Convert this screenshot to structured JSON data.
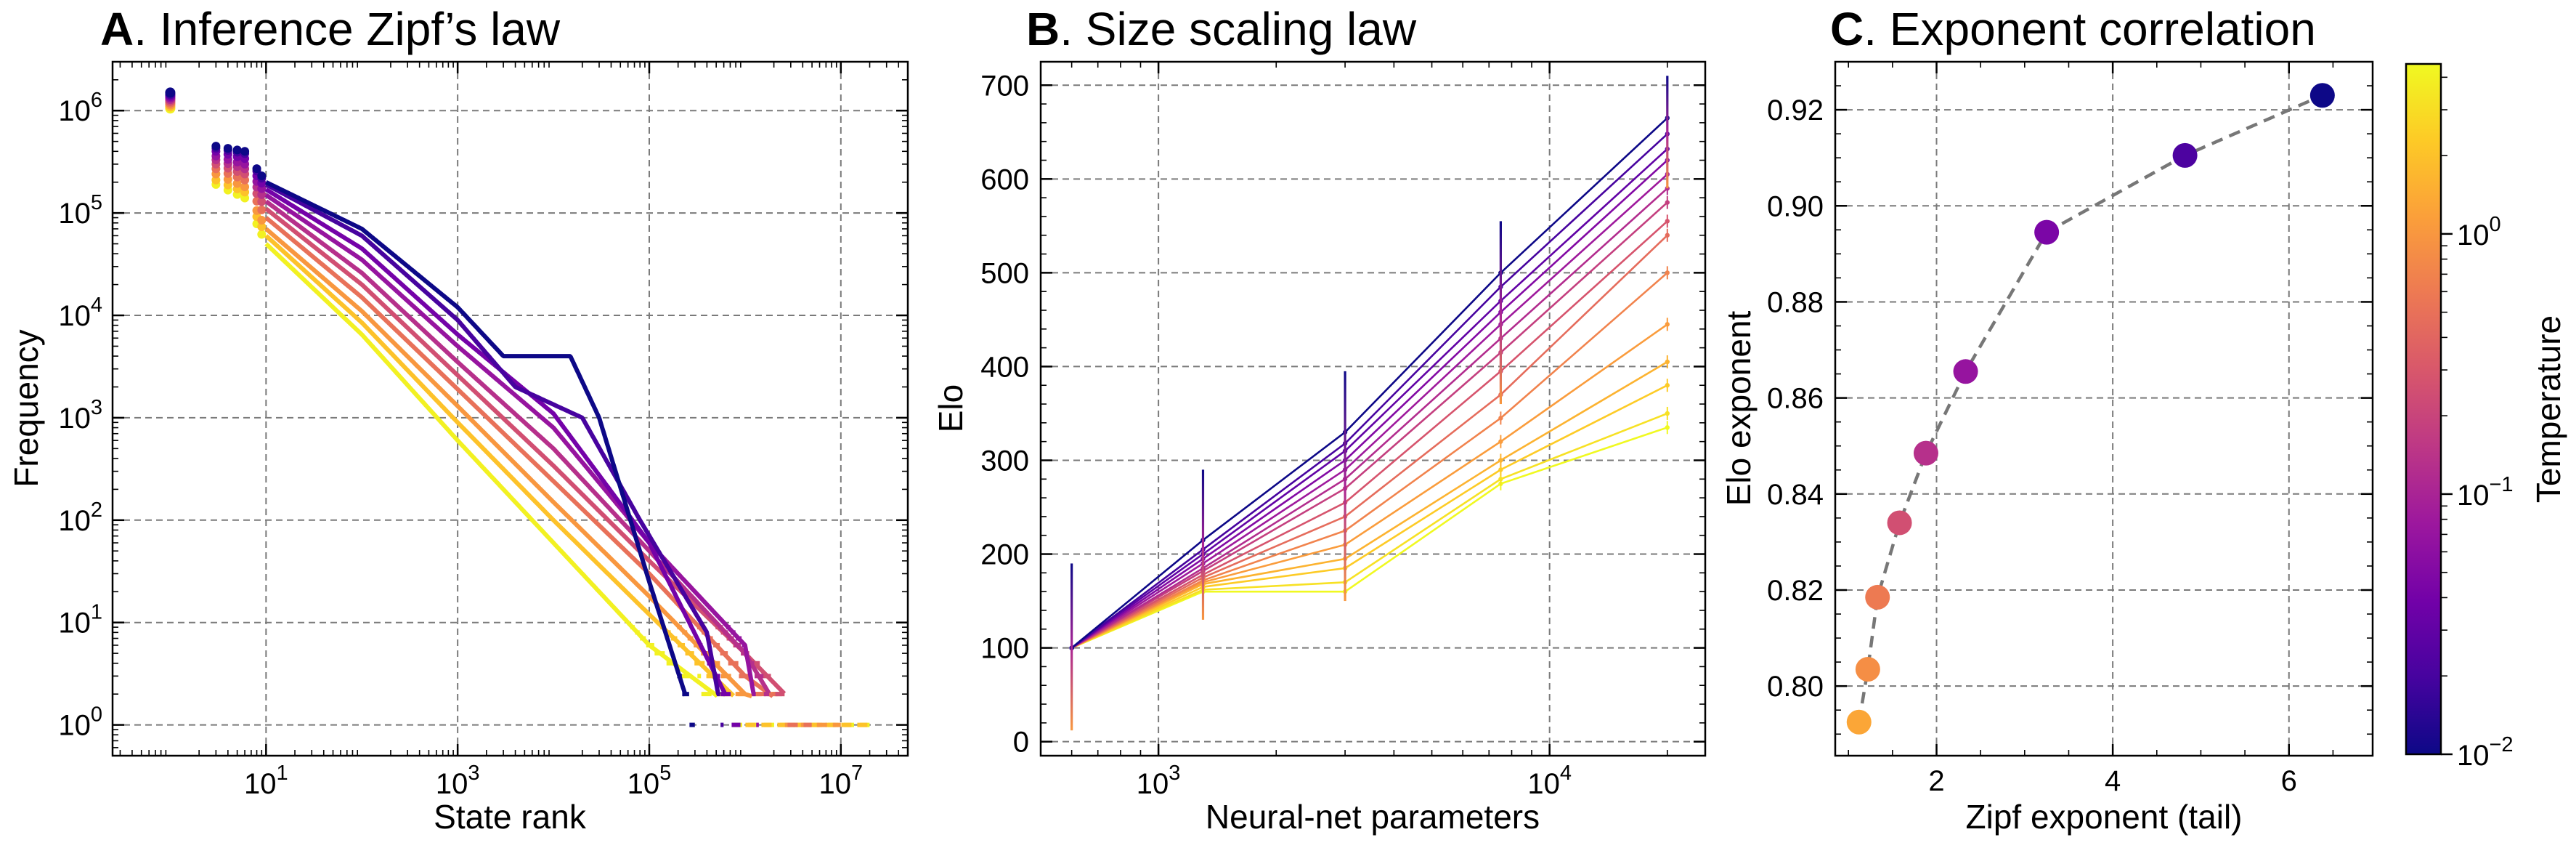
{
  "panels": {
    "A": {
      "letter": "A",
      "title_rest": ". Inference Zipf’s law",
      "xlabel": "State rank",
      "ylabel": "Frequency"
    },
    "B": {
      "letter": "B",
      "title_rest": ". Size scaling law",
      "xlabel": "Neural-net parameters",
      "ylabel": "Elo"
    },
    "C": {
      "letter": "C",
      "title_rest": ". Exponent correlation",
      "xlabel": "Zipf exponent (tail)",
      "ylabel": "Elo exponent"
    }
  },
  "colorbar": {
    "label": "Temperature",
    "scale": "log",
    "range": [
      0.01,
      4.5
    ],
    "ticks": [
      {
        "value": 0.01,
        "base": "10",
        "exp": "−2"
      },
      {
        "value": 0.1,
        "base": "10",
        "exp": "−1"
      },
      {
        "value": 1,
        "base": "10",
        "exp": "0"
      }
    ],
    "colormap": "plasma",
    "colormap_stops": [
      "#0d0887",
      "#46039f",
      "#7201a8",
      "#9c179e",
      "#bd3786",
      "#d8576b",
      "#ed7953",
      "#fb9f3a",
      "#fdca26",
      "#f0f921"
    ]
  },
  "chart_data": [
    {
      "type": "scatter",
      "title": "A. Inference Zipf’s law",
      "xlabel": "State rank",
      "ylabel": "Frequency",
      "xscale": "log",
      "yscale": "log",
      "xlim": [
        0.25,
        50000000
      ],
      "ylim": [
        0.5,
        3000000
      ],
      "xticks": [
        {
          "value": 10,
          "base": "10",
          "exp": "1"
        },
        {
          "value": 1000,
          "base": "10",
          "exp": "3"
        },
        {
          "value": 100000,
          "base": "10",
          "exp": "5"
        },
        {
          "value": 10000000,
          "base": "10",
          "exp": "7"
        }
      ],
      "yticks": [
        {
          "value": 1,
          "base": "10",
          "exp": "0"
        },
        {
          "value": 10,
          "base": "10",
          "exp": "1"
        },
        {
          "value": 100,
          "base": "10",
          "exp": "2"
        },
        {
          "value": 1000,
          "base": "10",
          "exp": "3"
        },
        {
          "value": 10000,
          "base": "10",
          "exp": "4"
        },
        {
          "value": 100000,
          "base": "10",
          "exp": "5"
        },
        {
          "value": 1000000,
          "base": "10",
          "exp": "6"
        }
      ],
      "grid": true,
      "series": [
        {
          "temperature": 0.01,
          "points": [
            [
              1,
              1500000
            ],
            [
              3,
              450000
            ],
            [
              6,
              400000
            ],
            [
              10,
              200000
            ],
            [
              100,
              70000
            ],
            [
              1000,
              12000
            ],
            [
              3000,
              4000
            ],
            [
              15000,
              4000
            ],
            [
              30000,
              1000
            ],
            [
              100000,
              25
            ],
            [
              300000,
              1
            ]
          ]
        },
        {
          "temperature": 0.02,
          "points": [
            [
              1,
              1450000
            ],
            [
              3,
              430000
            ],
            [
              6,
              380000
            ],
            [
              10,
              190000
            ],
            [
              100,
              60000
            ],
            [
              1000,
              9000
            ],
            [
              4000,
              2000
            ],
            [
              20000,
              1000
            ],
            [
              80000,
              100
            ],
            [
              400000,
              8
            ],
            [
              600000,
              1
            ]
          ]
        },
        {
          "temperature": 0.04,
          "points": [
            [
              1,
              1400000
            ],
            [
              3,
              400000
            ],
            [
              6,
              340000
            ],
            [
              10,
              170000
            ],
            [
              100,
              45000
            ],
            [
              1000,
              6500
            ],
            [
              10000,
              1100
            ],
            [
              100000,
              60
            ],
            [
              900000,
              1
            ]
          ]
        },
        {
          "temperature": 0.07,
          "points": [
            [
              1,
              1350000
            ],
            [
              3,
              360000
            ],
            [
              6,
              300000
            ],
            [
              10,
              150000
            ],
            [
              100,
              35000
            ],
            [
              1000,
              5000
            ],
            [
              10000,
              800
            ],
            [
              100000,
              60
            ],
            [
              1000000,
              6
            ],
            [
              1400000,
              1
            ]
          ]
        },
        {
          "temperature": 0.13,
          "points": [
            [
              1,
              1300000
            ],
            [
              3,
              330000
            ],
            [
              6,
              270000
            ],
            [
              10,
              130000
            ],
            [
              100,
              26000
            ],
            [
              1000,
              3500
            ],
            [
              10000,
              500
            ],
            [
              100000,
              50
            ],
            [
              1000000,
              5
            ],
            [
              1800000,
              2
            ]
          ]
        },
        {
          "temperature": 0.25,
          "points": [
            [
              1,
              1250000
            ],
            [
              3,
              300000
            ],
            [
              6,
              240000
            ],
            [
              10,
              110000
            ],
            [
              100,
              20000
            ],
            [
              1000,
              2600
            ],
            [
              10000,
              340
            ],
            [
              100000,
              40
            ],
            [
              1000000,
              5
            ],
            [
              2600000,
              2
            ]
          ]
        },
        {
          "temperature": 0.5,
          "points": [
            [
              1,
              1200000
            ],
            [
              3,
              270000
            ],
            [
              6,
              210000
            ],
            [
              10,
              90000
            ],
            [
              100,
              15000
            ],
            [
              1000,
              1900
            ],
            [
              10000,
              240
            ],
            [
              100000,
              30
            ],
            [
              1000000,
              3
            ],
            [
              5000000,
              1
            ]
          ]
        },
        {
          "temperature": 1.0,
          "points": [
            [
              1,
              1150000
            ],
            [
              3,
              240000
            ],
            [
              6,
              180000
            ],
            [
              10,
              70000
            ],
            [
              100,
              11000
            ],
            [
              1000,
              1300
            ],
            [
              10000,
              150
            ],
            [
              100000,
              18
            ],
            [
              1000000,
              2
            ],
            [
              10000000,
              1
            ]
          ]
        },
        {
          "temperature": 2.0,
          "points": [
            [
              1,
              1100000
            ],
            [
              3,
              210000
            ],
            [
              6,
              160000
            ],
            [
              10,
              60000
            ],
            [
              100,
              8500
            ],
            [
              1000,
              900
            ],
            [
              10000,
              100
            ],
            [
              100000,
              12
            ],
            [
              1000000,
              1.5
            ],
            [
              20000000,
              1
            ]
          ]
        },
        {
          "temperature": 4.0,
          "points": [
            [
              1,
              1050000
            ],
            [
              3,
              190000
            ],
            [
              6,
              140000
            ],
            [
              10,
              50000
            ],
            [
              100,
              6500
            ],
            [
              1000,
              600
            ],
            [
              10000,
              60
            ],
            [
              100000,
              6
            ],
            [
              1000000,
              1.2
            ],
            [
              20000000,
              1
            ]
          ]
        }
      ]
    },
    {
      "type": "line",
      "title": "B. Size scaling law",
      "xlabel": "Neural-net parameters",
      "ylabel": "Elo",
      "xscale": "log",
      "xlim": [
        500,
        25000
      ],
      "ylim": [
        -15,
        725
      ],
      "x": [
        600,
        1300,
        3000,
        7500,
        20000
      ],
      "xticks": [
        {
          "value": 1000,
          "base": "10",
          "exp": "3"
        },
        {
          "value": 10000,
          "base": "10",
          "exp": "4"
        }
      ],
      "yticks": [
        0,
        100,
        200,
        300,
        400,
        500,
        600,
        700
      ],
      "grid": true,
      "series": [
        {
          "temperature": 0.01,
          "values": [
            100,
            215,
            330,
            500,
            665
          ]
        },
        {
          "temperature": 0.02,
          "values": [
            100,
            205,
            318,
            485,
            648
          ]
        },
        {
          "temperature": 0.03,
          "values": [
            100,
            200,
            310,
            470,
            632
          ]
        },
        {
          "temperature": 0.05,
          "values": [
            100,
            195,
            300,
            458,
            620
          ]
        },
        {
          "temperature": 0.08,
          "values": [
            100,
            190,
            290,
            445,
            605
          ]
        },
        {
          "temperature": 0.12,
          "values": [
            100,
            185,
            280,
            430,
            590
          ]
        },
        {
          "temperature": 0.18,
          "values": [
            100,
            182,
            270,
            415,
            575
          ]
        },
        {
          "temperature": 0.28,
          "values": [
            100,
            178,
            255,
            395,
            555
          ]
        },
        {
          "temperature": 0.45,
          "values": [
            100,
            175,
            240,
            370,
            540
          ]
        },
        {
          "temperature": 0.7,
          "values": [
            100,
            172,
            225,
            345,
            500
          ]
        },
        {
          "temperature": 1.1,
          "values": [
            100,
            170,
            210,
            320,
            445
          ]
        },
        {
          "temperature": 1.6,
          "values": [
            100,
            168,
            195,
            300,
            405
          ]
        },
        {
          "temperature": 2.3,
          "values": [
            100,
            165,
            185,
            290,
            380
          ]
        },
        {
          "temperature": 3.2,
          "values": [
            100,
            162,
            170,
            280,
            350
          ]
        },
        {
          "temperature": 4.5,
          "values": [
            100,
            160,
            160,
            275,
            335
          ]
        }
      ],
      "error_bars": [
        {
          "x": 600,
          "y": 100,
          "low": 12,
          "high": 190
        },
        {
          "x": 1300,
          "y": 210,
          "low": 130,
          "high": 290
        },
        {
          "x": 3000,
          "y": 280,
          "low": 150,
          "high": 395
        },
        {
          "x": 7500,
          "y": 450,
          "low": 360,
          "high": 555
        },
        {
          "x": 20000,
          "y": 640,
          "low": 590,
          "high": 710
        }
      ]
    },
    {
      "type": "scatter",
      "title": "C. Exponent correlation",
      "xlabel": "Zipf exponent (tail)",
      "ylabel": "Elo exponent",
      "xlim": [
        0.85,
        6.95
      ],
      "ylim": [
        0.7855,
        0.93
      ],
      "xticks": [
        2,
        4,
        6
      ],
      "yticks": [
        0.8,
        0.82,
        0.84,
        0.86,
        0.88,
        0.9,
        0.92
      ],
      "ytick_labels": [
        "0.80",
        "0.82",
        "0.84",
        "0.86",
        "0.88",
        "0.90",
        "0.92"
      ],
      "grid": true,
      "fit_line": "dashed",
      "points": [
        {
          "x": 1.12,
          "y": 0.7925,
          "temperature": 1.3
        },
        {
          "x": 1.22,
          "y": 0.8035,
          "temperature": 0.85
        },
        {
          "x": 1.33,
          "y": 0.8185,
          "temperature": 0.6
        },
        {
          "x": 1.58,
          "y": 0.834,
          "temperature": 0.25
        },
        {
          "x": 1.88,
          "y": 0.8485,
          "temperature": 0.13
        },
        {
          "x": 2.33,
          "y": 0.8655,
          "temperature": 0.07
        },
        {
          "x": 3.25,
          "y": 0.8945,
          "temperature": 0.045
        },
        {
          "x": 4.82,
          "y": 0.9105,
          "temperature": 0.022
        },
        {
          "x": 6.38,
          "y": 0.923,
          "temperature": 0.01
        }
      ]
    }
  ]
}
